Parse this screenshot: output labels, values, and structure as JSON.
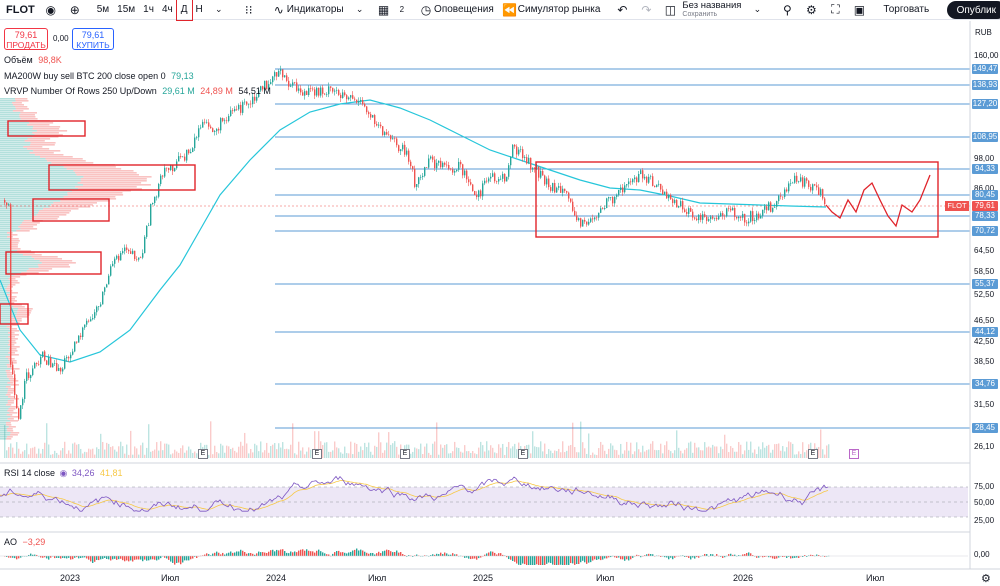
{
  "toolbar": {
    "symbol": "FLOT",
    "intervals": [
      "5м",
      "15м",
      "1ч",
      "4ч",
      "Д",
      "Н"
    ],
    "active_interval": "Д",
    "indicators_label": "Индикаторы",
    "templates_count": "2",
    "alerts_label": "Оповещения",
    "replay_label": "Симулятор рынка",
    "layout_name": "Без названия",
    "layout_status": "Сохранить",
    "trade_label": "Торговать",
    "publish_label": "Опублик"
  },
  "order_panel": {
    "sell_price": "79,61",
    "sell_label": "ПРОДАТЬ",
    "spread": "0,00",
    "buy_price": "79,61",
    "buy_label": "КУПИТЬ"
  },
  "legends": {
    "volume_label": "Объём",
    "volume_value": "98,8K",
    "ma_label": "MA200W buy sell BTC 200 close open 0",
    "ma_value": "79,13",
    "vrvp_label": "VRVP Number Of Rows 250 Up/Down",
    "vrvp_up": "29,61 M",
    "vrvp_down": "24,89 M",
    "vrvp_total": "54,51 M",
    "rsi_label": "RSI 14 close",
    "rsi_value": "34,26",
    "rsi_ma_value": "41,81",
    "ao_label": "AO",
    "ao_value": "−3,29"
  },
  "price_axis": {
    "currency": "RUB",
    "ticks": [
      "160,00",
      "98,00",
      "86,00",
      "64,50",
      "58,50",
      "52,50",
      "46,50",
      "42,50",
      "38,50",
      "31,50",
      "26,10"
    ],
    "level_tags": [
      "149,47",
      "138,93",
      "127,20",
      "108,95",
      "94,33",
      "80,45",
      "78,33",
      "70,72",
      "55,37",
      "44,12",
      "34,76",
      "28,45"
    ],
    "last_price": "79,61",
    "last_symbol": "FLOT"
  },
  "rsi_axis": {
    "ticks": [
      "75,00",
      "50,00",
      "25,00"
    ]
  },
  "ao_axis": {
    "ticks": [
      "0,00"
    ]
  },
  "time_axis": {
    "labels": [
      "2023",
      "Июл",
      "2024",
      "Июл",
      "2025",
      "Июл",
      "2026",
      "Июл"
    ]
  },
  "event_markers": [
    "E",
    "E",
    "E",
    "E",
    "E",
    "E"
  ],
  "colors": {
    "up": "#26a69a",
    "down": "#ef5350",
    "ma": "#26c6da",
    "level_line": "#5b9bd5",
    "highlight_box": "#e0242b",
    "rsi": "#7e57c2",
    "rsi_ma": "#f7c948",
    "rsi_band": "#ede7f6"
  }
}
